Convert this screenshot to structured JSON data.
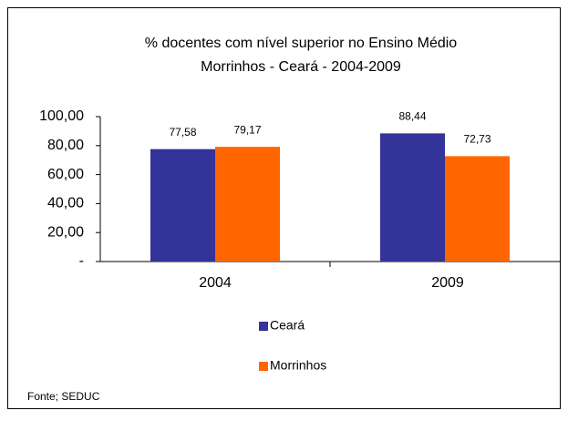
{
  "chart_data": {
    "type": "bar",
    "title": "% docentes com nível  superior no Ensino Médio",
    "subtitle": "Morrinhos  -  Ceará - 2004-2009",
    "categories": [
      "2004",
      "2009"
    ],
    "series": [
      {
        "name": "Ceará",
        "color": "#333399",
        "values": [
          77.58,
          88.44
        ],
        "value_labels": [
          "77,58",
          "88,44"
        ]
      },
      {
        "name": "Morrinhos",
        "color": "#ff6600",
        "values": [
          79.17,
          72.73
        ],
        "value_labels": [
          "79,17",
          "72,73"
        ]
      }
    ],
    "ylim": [
      0,
      100
    ],
    "yticks": [
      {
        "value": 0,
        "label": "-"
      },
      {
        "value": 20,
        "label": "20,00"
      },
      {
        "value": 40,
        "label": "40,00"
      },
      {
        "value": 60,
        "label": "60,00"
      },
      {
        "value": 80,
        "label": "80,00"
      },
      {
        "value": 100,
        "label": "100,00"
      }
    ],
    "grid": false,
    "legend": "bottom",
    "source": "Fonte; SEDUC"
  }
}
